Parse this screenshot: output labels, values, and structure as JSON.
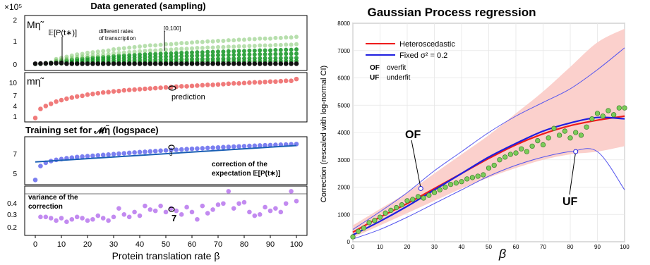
{
  "left_figure": {
    "title_top": "Data generated (sampling)",
    "title_training": "Training set for 𝓜η̃ (logspace)",
    "xlabel": "Protein translation rate β",
    "xticks": [
      "0",
      "10",
      "20",
      "30",
      "40",
      "50",
      "60",
      "70",
      "80",
      "90",
      "100"
    ],
    "panel_a": {
      "label": "Mη̃",
      "scale_label": "×10⁵",
      "yticks": [
        "2",
        "1",
        "0"
      ],
      "annotation_expect": "𝔼[P(t∗)]",
      "annotation_rates_1": "different rates",
      "annotation_rates_2": "of transcription",
      "annotation_range": "[0,100]"
    },
    "panel_b": {
      "label": "mη̃",
      "yticks": [
        "10",
        "7",
        "4",
        "1"
      ],
      "annotation": "prediction"
    },
    "panel_c": {
      "yticks": [
        "7",
        "5"
      ],
      "annotation_1": "correction of the",
      "annotation_2": "expectation 𝔼[P(t∗)]",
      "marker": "3"
    },
    "panel_d": {
      "yticks": [
        "0.4",
        "0.3",
        "0.2"
      ],
      "annotation_1": "variance of the",
      "annotation_2": "correction",
      "marker": "7"
    }
  },
  "chart_data": [
    {
      "type": "scatter",
      "panel": "Mη̃",
      "x": [
        0,
        2,
        4,
        6,
        8,
        10,
        12,
        14,
        16,
        18,
        20,
        22,
        24,
        26,
        28,
        30,
        32,
        34,
        36,
        38,
        40,
        42,
        44,
        46,
        48,
        50,
        52,
        54,
        56,
        58,
        60,
        62,
        64,
        66,
        68,
        70,
        72,
        74,
        76,
        78,
        80,
        82,
        84,
        86,
        88,
        90,
        92,
        94,
        96,
        98,
        100
      ],
      "values_e5": [
        0.02,
        0.03,
        0.05,
        0.07,
        0.09,
        0.11,
        0.13,
        0.15,
        0.17,
        0.18,
        0.2,
        0.21,
        0.22,
        0.23,
        0.24,
        0.26,
        0.27,
        0.28,
        0.29,
        0.3,
        0.31,
        0.32,
        0.33,
        0.33,
        0.34,
        0.35,
        0.35,
        0.36,
        0.37,
        0.37,
        0.38,
        0.39,
        0.39,
        0.4,
        0.4,
        0.41,
        0.41,
        0.42,
        0.42,
        0.43,
        0.43,
        0.44,
        0.44,
        0.45,
        0.45,
        0.45,
        0.46,
        0.46,
        0.47,
        0.47,
        0.48
      ],
      "ylim": [
        0,
        2
      ]
    },
    {
      "type": "scatter",
      "panel": "mη̃",
      "x": [
        0,
        2,
        4,
        6,
        8,
        10,
        12,
        14,
        16,
        18,
        20,
        22,
        24,
        26,
        28,
        30,
        32,
        34,
        36,
        38,
        40,
        42,
        44,
        46,
        48,
        50,
        52,
        54,
        56,
        58,
        60,
        62,
        64,
        66,
        68,
        70,
        72,
        74,
        76,
        78,
        80,
        82,
        84,
        86,
        88,
        90,
        92,
        94,
        96,
        98,
        100
      ],
      "values": [
        0.5,
        3.0,
        3.8,
        4.4,
        5.0,
        5.4,
        5.8,
        6.1,
        6.4,
        6.6,
        6.9,
        7.1,
        7.3,
        7.5,
        7.6,
        7.8,
        7.9,
        8.1,
        8.2,
        8.3,
        8.4,
        8.5,
        8.6,
        8.7,
        8.8,
        8.9,
        9.0,
        9.1,
        9.2,
        9.2,
        9.3,
        9.4,
        9.5,
        9.6,
        9.6,
        9.7,
        9.8,
        9.9,
        10.0,
        10.0,
        10.1,
        10.2,
        10.3,
        10.3,
        10.4,
        10.5,
        10.5,
        10.6,
        10.7,
        10.7,
        11.2
      ],
      "ylim": [
        0,
        12
      ]
    },
    {
      "type": "scatter",
      "panel": "Training set",
      "x": [
        0,
        2,
        4,
        6,
        8,
        10,
        12,
        14,
        16,
        18,
        20,
        22,
        24,
        26,
        28,
        30,
        32,
        34,
        36,
        38,
        40,
        42,
        44,
        46,
        48,
        50,
        52,
        54,
        56,
        58,
        60,
        62,
        64,
        66,
        68,
        70,
        72,
        74,
        76,
        78,
        80,
        82,
        84,
        86,
        88,
        90,
        92,
        94,
        96,
        98,
        100
      ],
      "values": [
        4.2,
        5.9,
        6.3,
        6.5,
        6.65,
        6.75,
        6.85,
        6.92,
        7.0,
        7.05,
        7.1,
        7.15,
        7.2,
        7.25,
        7.3,
        7.35,
        7.4,
        7.45,
        7.5,
        7.55,
        7.6,
        7.63,
        7.68,
        7.72,
        7.77,
        7.8,
        7.85,
        7.88,
        7.92,
        7.96,
        8.0,
        8.03,
        8.06,
        8.1,
        8.13,
        8.16,
        8.2,
        8.23,
        8.26,
        8.29,
        8.32,
        8.35,
        8.37,
        8.4,
        8.43,
        8.45,
        8.48,
        8.5,
        8.52,
        8.55,
        8.58
      ],
      "fit_line": {
        "x": [
          0,
          100
        ],
        "y": [
          6.4,
          8.4
        ]
      },
      "ylim": [
        3.8,
        9.3
      ]
    },
    {
      "type": "scatter",
      "panel": "variance",
      "x": [
        2,
        4,
        6,
        8,
        10,
        12,
        14,
        16,
        18,
        20,
        22,
        24,
        26,
        28,
        30,
        32,
        34,
        36,
        38,
        40,
        42,
        44,
        46,
        48,
        50,
        52,
        54,
        56,
        58,
        60,
        62,
        64,
        66,
        68,
        70,
        72,
        74,
        76,
        78,
        80,
        82,
        84,
        86,
        88,
        90,
        92,
        94,
        96,
        98,
        100
      ],
      "values": [
        0.29,
        0.29,
        0.28,
        0.26,
        0.28,
        0.25,
        0.27,
        0.29,
        0.28,
        0.26,
        0.27,
        0.3,
        0.28,
        0.26,
        0.29,
        0.36,
        0.31,
        0.29,
        0.33,
        0.3,
        0.38,
        0.35,
        0.34,
        0.38,
        0.33,
        0.36,
        0.34,
        0.31,
        0.37,
        0.33,
        0.27,
        0.38,
        0.32,
        0.35,
        0.39,
        0.4,
        0.5,
        0.36,
        0.4,
        0.41,
        0.33,
        0.3,
        0.31,
        0.37,
        0.34,
        0.36,
        0.33,
        0.4,
        0.5,
        0.42
      ],
      "ylim": [
        0.15,
        0.52
      ]
    },
    {
      "type": "line",
      "title": "Gaussian Process regression",
      "xlabel": "β",
      "ylabel": "Correction (rescaled with log-normal CI)",
      "xlim": [
        0,
        100
      ],
      "ylim": [
        0,
        8000
      ],
      "xticks": [
        "0",
        "10",
        "20",
        "30",
        "40",
        "50",
        "60",
        "70",
        "80",
        "90",
        "100"
      ],
      "yticks": [
        "0",
        "1000",
        "2000",
        "3000",
        "4000",
        "5000",
        "6000",
        "7000",
        "8000"
      ],
      "legend": {
        "position": "top-left",
        "entries": [
          "Heteroscedastic",
          "Fixed σ² = 0.2"
        ],
        "of_key": "OF",
        "of_text": "overfit",
        "uf_key": "UF",
        "uf_text": "underfit"
      },
      "annotations": {
        "of": "OF",
        "uf": "UF"
      },
      "colors": {
        "heteroscedastic": "#ee1c1c",
        "fixed": "#1f1fe0",
        "band": "#fbd0cc",
        "points": "#7ccc5a"
      },
      "x": [
        0,
        10,
        20,
        30,
        40,
        50,
        60,
        70,
        80,
        90,
        100
      ],
      "series": [
        {
          "name": "Heteroscedastic",
          "values": [
            350,
            900,
            1400,
            1950,
            2500,
            3050,
            3550,
            3950,
            4250,
            4450,
            4600
          ]
        },
        {
          "name": "Fixed σ² = 0.2",
          "values": [
            250,
            750,
            1300,
            1900,
            2500,
            3100,
            3600,
            4050,
            4350,
            4550,
            4500
          ]
        }
      ],
      "hetero_band": {
        "upper": [
          600,
          1200,
          1800,
          2500,
          3200,
          3900,
          4700,
          5500,
          6400,
          7300,
          7800
        ],
        "lower": [
          150,
          600,
          1050,
          1500,
          1950,
          2350,
          2700,
          3000,
          3200,
          3300,
          3500
        ]
      },
      "fixed_band": {
        "upper": [
          450,
          1100,
          1800,
          2600,
          3300,
          4000,
          4600,
          5100,
          5600,
          6300,
          7100
        ],
        "lower": [
          100,
          450,
          900,
          1400,
          1900,
          2400,
          2800,
          3100,
          3300,
          3300,
          1900
        ]
      },
      "points": {
        "x": [
          0,
          2,
          4,
          6,
          8,
          10,
          12,
          14,
          16,
          18,
          20,
          22,
          24,
          26,
          28,
          30,
          32,
          34,
          36,
          38,
          40,
          42,
          44,
          46,
          48,
          50,
          52,
          54,
          56,
          58,
          60,
          62,
          64,
          66,
          68,
          70,
          72,
          74,
          76,
          78,
          80,
          82,
          84,
          86,
          88,
          90,
          92,
          94,
          96,
          98,
          100
        ],
        "y": [
          180,
          380,
          500,
          700,
          780,
          900,
          1050,
          1150,
          1250,
          1350,
          1500,
          1550,
          1650,
          1600,
          1700,
          1800,
          1900,
          2000,
          2100,
          2150,
          2200,
          2300,
          2350,
          2400,
          2450,
          2700,
          2800,
          3000,
          3100,
          3200,
          3250,
          3400,
          3300,
          3500,
          3700,
          3550,
          3800,
          4150,
          3900,
          4050,
          3800,
          4000,
          3900,
          4200,
          4500,
          4700,
          4600,
          4800,
          4650,
          4900,
          4900
        ]
      }
    }
  ]
}
